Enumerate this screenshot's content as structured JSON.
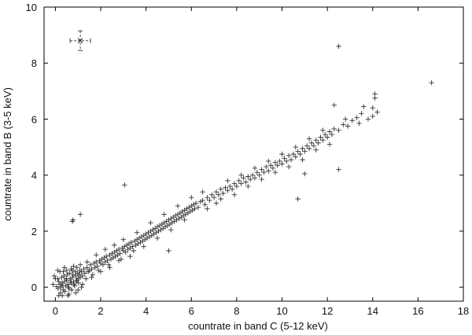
{
  "chart_data": {
    "type": "scatter",
    "title": "",
    "xlabel": "countrate in band C (5-12 keV)",
    "ylabel": "countrate in band B (3-5 keV)",
    "xlim": [
      -0.5,
      18
    ],
    "ylim": [
      -0.5,
      10
    ],
    "x_ticks": [
      "0",
      "2",
      "4",
      "6",
      "8",
      "10",
      "12",
      "14",
      "16",
      "18"
    ],
    "y_ticks": [
      "0",
      "2",
      "4",
      "6",
      "8",
      "10"
    ],
    "marker": "+",
    "marker_color": "#333333",
    "relation": "approximately linear, y ≈ 0.46·x",
    "representative_error_bar": {
      "x": 1.1,
      "y": 8.8,
      "x_err": 0.45,
      "y_err": 0.35
    },
    "points": [
      [
        0.05,
        0.02
      ],
      [
        0.12,
        -0.05
      ],
      [
        0.2,
        0.1
      ],
      [
        0.25,
        0.0
      ],
      [
        0.3,
        0.15
      ],
      [
        0.35,
        -0.1
      ],
      [
        0.4,
        0.2
      ],
      [
        0.45,
        0.05
      ],
      [
        0.5,
        0.25
      ],
      [
        0.55,
        0.1
      ],
      [
        0.6,
        -0.05
      ],
      [
        0.65,
        0.3
      ],
      [
        0.7,
        0.15
      ],
      [
        0.75,
        0.35
      ],
      [
        0.8,
        0.2
      ],
      [
        0.85,
        0.05
      ],
      [
        0.9,
        0.4
      ],
      [
        0.95,
        0.25
      ],
      [
        1.0,
        0.3
      ],
      [
        1.05,
        0.45
      ],
      [
        0.1,
        0.3
      ],
      [
        0.15,
        0.2
      ],
      [
        0.22,
        -0.2
      ],
      [
        0.28,
        0.35
      ],
      [
        0.33,
        0.05
      ],
      [
        0.38,
        0.4
      ],
      [
        0.42,
        -0.15
      ],
      [
        0.48,
        0.3
      ],
      [
        0.52,
        0.45
      ],
      [
        0.58,
        0.0
      ],
      [
        0.62,
        0.5
      ],
      [
        0.68,
        0.2
      ],
      [
        0.72,
        -0.1
      ],
      [
        0.78,
        0.45
      ],
      [
        0.82,
        0.1
      ],
      [
        0.88,
        0.55
      ],
      [
        0.92,
        0.2
      ],
      [
        0.98,
        0.5
      ],
      [
        1.02,
        0.15
      ],
      [
        1.08,
        0.6
      ],
      [
        1.1,
        0.35
      ],
      [
        1.15,
        0.55
      ],
      [
        1.2,
        0.4
      ],
      [
        1.25,
        0.65
      ],
      [
        1.3,
        0.5
      ],
      [
        1.35,
        0.3
      ],
      [
        1.4,
        0.7
      ],
      [
        1.45,
        0.55
      ],
      [
        1.5,
        0.6
      ],
      [
        1.55,
        0.8
      ],
      [
        1.6,
        0.65
      ],
      [
        1.65,
        0.45
      ],
      [
        1.7,
        0.85
      ],
      [
        1.75,
        0.7
      ],
      [
        1.8,
        0.9
      ],
      [
        1.85,
        0.75
      ],
      [
        1.9,
        0.6
      ],
      [
        1.95,
        0.95
      ],
      [
        2.0,
        0.85
      ],
      [
        2.05,
        1.0
      ],
      [
        2.1,
        0.8
      ],
      [
        2.15,
        1.05
      ],
      [
        2.2,
        0.9
      ],
      [
        2.25,
        1.1
      ],
      [
        2.3,
        0.95
      ],
      [
        2.35,
        0.8
      ],
      [
        2.4,
        1.15
      ],
      [
        2.45,
        1.0
      ],
      [
        2.5,
        1.2
      ],
      [
        2.55,
        1.05
      ],
      [
        2.6,
        1.25
      ],
      [
        2.65,
        1.1
      ],
      [
        2.7,
        1.3
      ],
      [
        2.75,
        1.15
      ],
      [
        2.8,
        1.35
      ],
      [
        2.85,
        1.2
      ],
      [
        2.9,
        1.0
      ],
      [
        2.95,
        1.4
      ],
      [
        3.0,
        1.3
      ],
      [
        3.05,
        1.45
      ],
      [
        3.1,
        1.25
      ],
      [
        3.15,
        1.5
      ],
      [
        3.2,
        1.35
      ],
      [
        3.25,
        1.55
      ],
      [
        3.3,
        1.4
      ],
      [
        3.35,
        1.6
      ],
      [
        3.4,
        1.45
      ],
      [
        3.45,
        1.3
      ],
      [
        3.5,
        1.65
      ],
      [
        3.55,
        1.5
      ],
      [
        3.6,
        1.7
      ],
      [
        3.65,
        1.55
      ],
      [
        3.7,
        1.75
      ],
      [
        3.75,
        1.6
      ],
      [
        3.8,
        1.8
      ],
      [
        3.85,
        1.65
      ],
      [
        3.9,
        1.85
      ],
      [
        3.95,
        1.7
      ],
      [
        4.0,
        1.9
      ],
      [
        4.05,
        1.75
      ],
      [
        4.1,
        1.95
      ],
      [
        4.15,
        1.8
      ],
      [
        4.2,
        2.0
      ],
      [
        4.25,
        1.85
      ],
      [
        4.3,
        2.05
      ],
      [
        4.35,
        1.9
      ],
      [
        4.4,
        2.1
      ],
      [
        4.45,
        1.95
      ],
      [
        4.5,
        2.15
      ],
      [
        4.55,
        2.0
      ],
      [
        4.6,
        2.2
      ],
      [
        4.65,
        2.05
      ],
      [
        4.7,
        2.25
      ],
      [
        4.75,
        2.1
      ],
      [
        4.8,
        2.3
      ],
      [
        4.85,
        2.15
      ],
      [
        4.9,
        2.35
      ],
      [
        4.95,
        2.2
      ],
      [
        5.0,
        2.4
      ],
      [
        5.05,
        2.25
      ],
      [
        5.1,
        2.45
      ],
      [
        5.15,
        2.3
      ],
      [
        5.2,
        2.5
      ],
      [
        5.25,
        2.35
      ],
      [
        5.3,
        2.55
      ],
      [
        5.35,
        2.4
      ],
      [
        5.4,
        2.6
      ],
      [
        5.45,
        2.45
      ],
      [
        5.5,
        2.65
      ],
      [
        5.55,
        2.5
      ],
      [
        5.6,
        2.7
      ],
      [
        5.65,
        2.55
      ],
      [
        5.7,
        2.75
      ],
      [
        5.75,
        2.6
      ],
      [
        5.8,
        2.8
      ],
      [
        5.85,
        2.65
      ],
      [
        5.9,
        2.85
      ],
      [
        5.95,
        2.7
      ],
      [
        6.0,
        2.9
      ],
      [
        6.05,
        2.75
      ],
      [
        6.1,
        2.95
      ],
      [
        6.15,
        2.8
      ],
      [
        6.2,
        3.0
      ],
      [
        6.3,
        2.85
      ],
      [
        6.4,
        3.05
      ],
      [
        6.5,
        3.1
      ],
      [
        6.6,
        2.95
      ],
      [
        6.7,
        3.2
      ],
      [
        6.8,
        3.1
      ],
      [
        6.9,
        3.3
      ],
      [
        7.0,
        3.2
      ],
      [
        7.1,
        3.4
      ],
      [
        7.2,
        3.3
      ],
      [
        7.3,
        3.5
      ],
      [
        7.4,
        3.35
      ],
      [
        7.5,
        3.55
      ],
      [
        7.6,
        3.45
      ],
      [
        7.7,
        3.6
      ],
      [
        7.8,
        3.5
      ],
      [
        7.9,
        3.7
      ],
      [
        8.0,
        3.6
      ],
      [
        8.1,
        3.8
      ],
      [
        8.2,
        3.7
      ],
      [
        8.3,
        3.9
      ],
      [
        8.4,
        3.75
      ],
      [
        8.5,
        3.95
      ],
      [
        8.6,
        3.85
      ],
      [
        8.7,
        4.0
      ],
      [
        8.8,
        3.9
      ],
      [
        8.9,
        4.1
      ],
      [
        9.0,
        4.0
      ],
      [
        9.1,
        4.2
      ],
      [
        9.2,
        4.1
      ],
      [
        9.3,
        4.3
      ],
      [
        9.4,
        4.15
      ],
      [
        9.5,
        4.35
      ],
      [
        9.6,
        4.25
      ],
      [
        9.7,
        4.45
      ],
      [
        9.8,
        4.35
      ],
      [
        9.9,
        4.5
      ],
      [
        10.0,
        4.4
      ],
      [
        10.1,
        4.6
      ],
      [
        10.2,
        4.5
      ],
      [
        10.3,
        4.7
      ],
      [
        10.4,
        4.55
      ],
      [
        10.5,
        4.75
      ],
      [
        10.6,
        4.65
      ],
      [
        10.7,
        4.85
      ],
      [
        10.8,
        4.75
      ],
      [
        10.9,
        4.95
      ],
      [
        11.0,
        4.85
      ],
      [
        11.1,
        5.05
      ],
      [
        11.2,
        4.95
      ],
      [
        11.3,
        5.15
      ],
      [
        11.4,
        5.05
      ],
      [
        11.5,
        5.25
      ],
      [
        11.6,
        5.15
      ],
      [
        11.7,
        5.35
      ],
      [
        11.8,
        5.25
      ],
      [
        11.9,
        5.45
      ],
      [
        12.0,
        5.35
      ],
      [
        12.1,
        5.55
      ],
      [
        12.2,
        5.45
      ],
      [
        12.3,
        5.65
      ],
      [
        12.5,
        5.6
      ],
      [
        12.7,
        5.8
      ],
      [
        12.9,
        5.75
      ],
      [
        13.1,
        5.95
      ],
      [
        13.3,
        6.05
      ],
      [
        13.5,
        6.2
      ],
      [
        6.5,
        3.4
      ],
      [
        6.7,
        2.8
      ],
      [
        7.1,
        3.0
      ],
      [
        7.3,
        3.15
      ],
      [
        7.6,
        3.8
      ],
      [
        7.9,
        3.3
      ],
      [
        8.2,
        4.0
      ],
      [
        8.5,
        3.6
      ],
      [
        8.8,
        4.25
      ],
      [
        9.1,
        3.85
      ],
      [
        9.4,
        4.5
      ],
      [
        9.7,
        4.1
      ],
      [
        10.0,
        4.75
      ],
      [
        10.3,
        4.3
      ],
      [
        10.6,
        5.0
      ],
      [
        10.9,
        4.55
      ],
      [
        11.2,
        5.3
      ],
      [
        11.5,
        4.9
      ],
      [
        11.8,
        5.6
      ],
      [
        12.1,
        5.1
      ],
      [
        3.3,
        1.1
      ],
      [
        3.6,
        1.95
      ],
      [
        3.9,
        1.45
      ],
      [
        4.2,
        2.3
      ],
      [
        4.5,
        1.75
      ],
      [
        4.8,
        2.6
      ],
      [
        5.1,
        2.05
      ],
      [
        5.4,
        2.9
      ],
      [
        5.7,
        2.4
      ],
      [
        6.0,
        3.2
      ],
      [
        1.2,
        0.1
      ],
      [
        1.4,
        0.9
      ],
      [
        1.6,
        0.35
      ],
      [
        1.8,
        1.15
      ],
      [
        2.0,
        0.55
      ],
      [
        2.2,
        1.35
      ],
      [
        2.4,
        0.7
      ],
      [
        2.6,
        1.5
      ],
      [
        2.8,
        0.95
      ],
      [
        3.0,
        1.7
      ],
      [
        0.2,
        0.55
      ],
      [
        0.3,
        -0.3
      ],
      [
        0.5,
        0.6
      ],
      [
        0.7,
        0.65
      ],
      [
        0.9,
        -0.2
      ],
      [
        1.1,
        0.8
      ],
      [
        0.4,
        0.7
      ],
      [
        0.6,
        -0.25
      ],
      [
        0.8,
        0.75
      ],
      [
        1.0,
        -0.1
      ],
      [
        0.0,
        0.3
      ],
      [
        -0.1,
        0.1
      ],
      [
        0.15,
        -0.3
      ],
      [
        -0.05,
        0.4
      ],
      [
        0.1,
        0.6
      ],
      [
        0.35,
        0.55
      ],
      [
        0.55,
        -0.3
      ],
      [
        0.75,
        0.6
      ],
      [
        0.95,
        0.7
      ],
      [
        1.15,
        0.0
      ],
      [
        0.75,
        2.35
      ],
      [
        0.78,
        2.4
      ],
      [
        1.1,
        2.6
      ],
      [
        3.05,
        3.65
      ],
      [
        5.0,
        1.3
      ],
      [
        10.7,
        3.15
      ],
      [
        11.0,
        4.05
      ],
      [
        12.5,
        4.2
      ],
      [
        12.5,
        8.6
      ],
      [
        12.3,
        6.5
      ],
      [
        13.6,
        6.45
      ],
      [
        13.8,
        6.0
      ],
      [
        14.0,
        6.1
      ],
      [
        14.1,
        6.9
      ],
      [
        14.1,
        6.75
      ],
      [
        14.2,
        6.25
      ],
      [
        16.6,
        7.3
      ],
      [
        13.4,
        5.85
      ],
      [
        14.0,
        6.4
      ],
      [
        12.8,
        6.0
      ]
    ]
  }
}
